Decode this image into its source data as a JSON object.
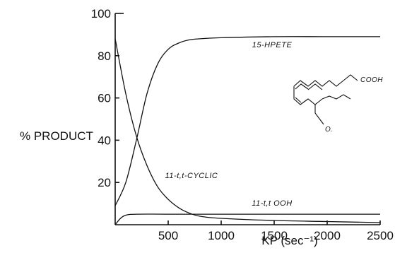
{
  "chart_data": {
    "type": "line",
    "title": "",
    "xlabel": "KP (sec⁻¹)",
    "ylabel": "% PRODUCT",
    "xlim": [
      0,
      2500
    ],
    "ylim": [
      0,
      100
    ],
    "x_ticks": [
      "500",
      "1000",
      "1500",
      "2000",
      "2500"
    ],
    "y_ticks": [
      "20",
      "40",
      "60",
      "80",
      "100"
    ],
    "grid": false,
    "series": [
      {
        "name": "15-HPETE",
        "x": [
          0,
          100,
          200,
          300,
          400,
          500,
          600,
          700,
          800,
          1000,
          1500,
          2000,
          2500
        ],
        "y": [
          9,
          20,
          40,
          62,
          76,
          83,
          86,
          87.5,
          88,
          88.5,
          89,
          89,
          89
        ]
      },
      {
        "name": "11-t,t-CYCLIC",
        "x": [
          0,
          100,
          200,
          300,
          400,
          500,
          600,
          700,
          800,
          1000,
          1500,
          2000,
          2500
        ],
        "y": [
          88,
          62,
          42,
          28,
          18,
          12,
          8,
          5.5,
          4,
          3,
          2,
          1.5,
          1
        ]
      },
      {
        "name": "11-t,t OOH",
        "x": [
          0,
          50,
          100,
          200,
          500,
          1000,
          1500,
          2000,
          2500
        ],
        "y": [
          0,
          3,
          4.5,
          5,
          5,
          5,
          5,
          5,
          5
        ]
      }
    ],
    "annotations": {
      "structure_label": "COOH"
    }
  }
}
